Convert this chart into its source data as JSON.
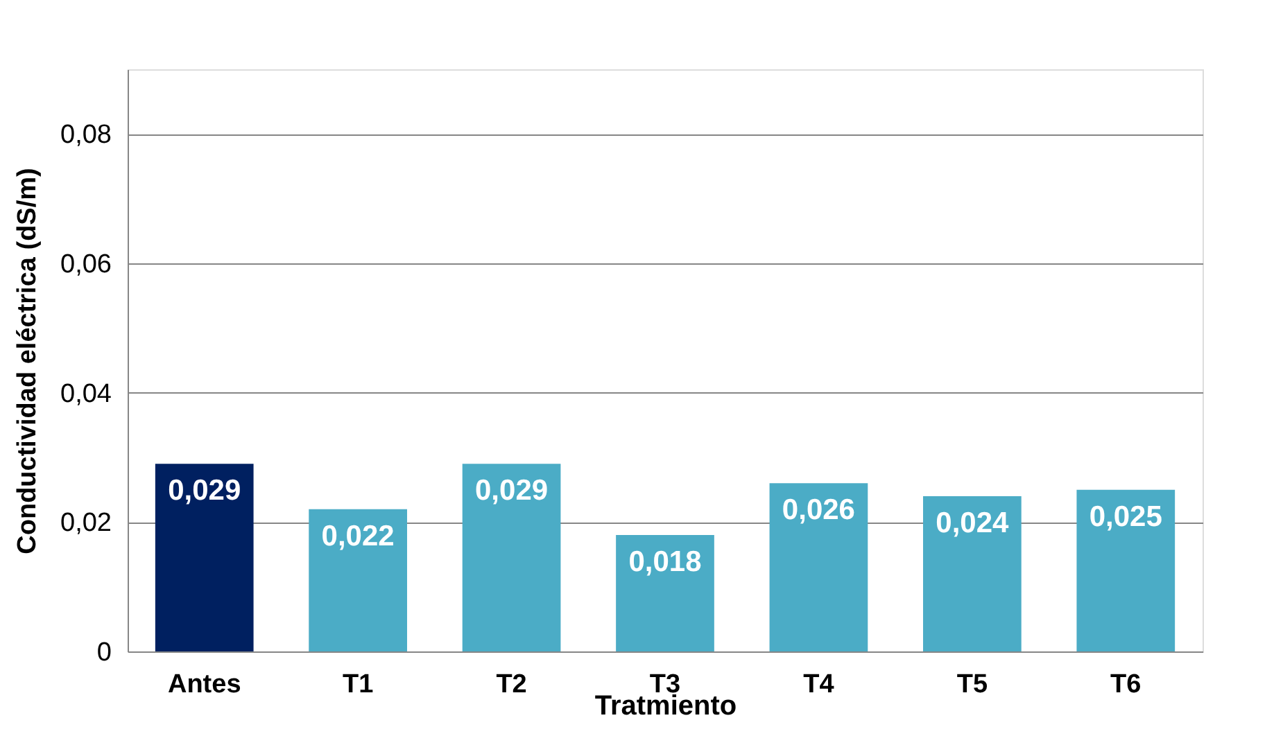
{
  "chart_data": {
    "type": "bar",
    "xlabel": "Tratmiento",
    "ylabel": "Conductividad eléctrica  (dS/m)",
    "categories": [
      "Antes",
      "T1",
      "T2",
      "T3",
      "T4",
      "T5",
      "T6"
    ],
    "values": [
      0.029,
      0.022,
      0.029,
      0.018,
      0.026,
      0.024,
      0.025
    ],
    "colors": [
      "#002060",
      "#4bacc6",
      "#4bacc6",
      "#4bacc6",
      "#4bacc6",
      "#4bacc6",
      "#4bacc6"
    ],
    "value_labels": [
      "0,029",
      "0,022",
      "0,029",
      "0,018",
      "0,026",
      "0,024",
      "0,025"
    ],
    "ylim": [
      0,
      0.09
    ],
    "yticks": [
      0,
      {
        "value": 0.02,
        "label": "0,02"
      },
      {
        "value": 0.04,
        "label": "0,04"
      },
      {
        "value": 0.06,
        "label": "0,06"
      },
      {
        "value": 0.08,
        "label": "0,08"
      }
    ],
    "grid": "y"
  }
}
